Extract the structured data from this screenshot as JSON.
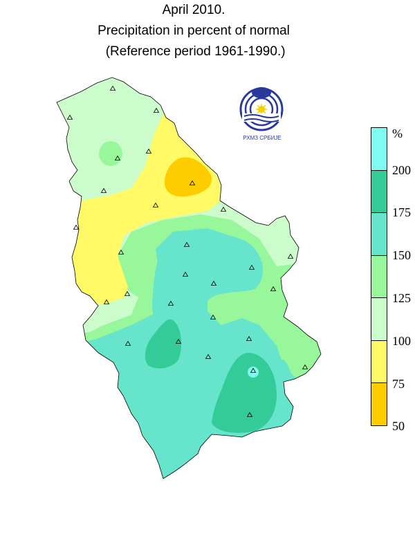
{
  "title": {
    "line1": "April 2010.",
    "line2": "Precipitation in percent of normal",
    "line3": " (Reference period 1961-1990.)"
  },
  "logo_text": "РХМЗ СРБИЈЕ",
  "legend": {
    "unit": "%",
    "classes": [
      {
        "range": [
          200,
          null
        ],
        "color": "#7ffbf3"
      },
      {
        "range": [
          175,
          200
        ],
        "color": "#33cc99"
      },
      {
        "range": [
          150,
          175
        ],
        "color": "#66e5cc"
      },
      {
        "range": [
          125,
          150
        ],
        "color": "#99f79b"
      },
      {
        "range": [
          100,
          125
        ],
        "color": "#ccfccc"
      },
      {
        "range": [
          75,
          100
        ],
        "color": "#fffa66"
      },
      {
        "range": [
          50,
          75
        ],
        "color": "#ffcc00"
      }
    ],
    "labels": [
      "200",
      "175",
      "150",
      "125",
      "100",
      "75",
      "50"
    ]
  },
  "station_marker": "triangle",
  "station_count": 30
}
